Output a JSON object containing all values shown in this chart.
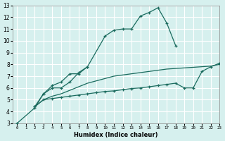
{
  "title": "",
  "xlabel": "Humidex (Indice chaleur)",
  "bg_color": "#d6f0ee",
  "grid_color": "#ffffff",
  "line_color": "#1a6b5e",
  "xlim": [
    -0.5,
    23
  ],
  "ylim": [
    3,
    13
  ],
  "xticks": [
    0,
    1,
    2,
    3,
    4,
    5,
    6,
    7,
    8,
    9,
    10,
    11,
    12,
    13,
    14,
    15,
    16,
    17,
    18,
    19,
    20,
    21,
    22,
    23
  ],
  "yticks": [
    3,
    4,
    5,
    6,
    7,
    8,
    9,
    10,
    11,
    12,
    13
  ],
  "series": [
    {
      "x": [
        0,
        2,
        3,
        4,
        5,
        6,
        7,
        8,
        10,
        11,
        12,
        13,
        14,
        15,
        16,
        17,
        18
      ],
      "y": [
        3.0,
        4.3,
        5.5,
        6.0,
        6.0,
        6.5,
        7.3,
        7.8,
        10.4,
        10.9,
        11.0,
        11.0,
        12.1,
        12.4,
        12.8,
        11.5,
        9.6
      ],
      "marker": true
    },
    {
      "x": [
        2,
        3,
        4,
        5,
        6,
        7,
        8
      ],
      "y": [
        4.4,
        5.5,
        6.2,
        6.5,
        7.2,
        7.2,
        7.8
      ],
      "marker": true
    },
    {
      "x": [
        2,
        3,
        4,
        5,
        6,
        7,
        8,
        9,
        10,
        11,
        12,
        13,
        14,
        15,
        16,
        17,
        18,
        19,
        20,
        21,
        22,
        23
      ],
      "y": [
        4.4,
        5.0,
        5.3,
        5.5,
        5.8,
        6.1,
        6.4,
        6.6,
        6.8,
        7.0,
        7.1,
        7.2,
        7.3,
        7.4,
        7.5,
        7.6,
        7.65,
        7.7,
        7.75,
        7.8,
        7.85,
        8.0
      ],
      "marker": false
    },
    {
      "x": [
        2,
        3,
        4,
        5,
        6,
        7,
        8,
        9,
        10,
        11,
        12,
        13,
        14,
        15,
        16,
        17,
        18,
        19,
        20,
        21,
        22,
        23
      ],
      "y": [
        4.4,
        5.0,
        5.1,
        5.2,
        5.3,
        5.4,
        5.5,
        5.6,
        5.7,
        5.75,
        5.85,
        5.95,
        6.0,
        6.1,
        6.2,
        6.3,
        6.4,
        6.0,
        6.0,
        7.4,
        7.8,
        8.1
      ],
      "marker": true
    }
  ]
}
